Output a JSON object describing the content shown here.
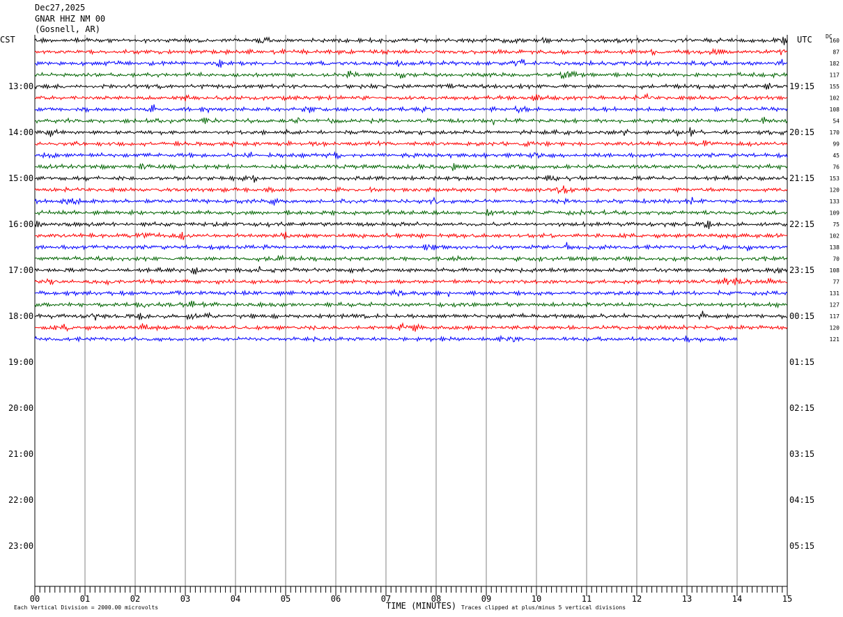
{
  "header": {
    "date": "Dec27,2025",
    "station": "GNAR HHZ NM 00",
    "location": "(Gosnell, AR)"
  },
  "left_axis_title": "CST",
  "right_axis_title": "UTC",
  "dc_title": "DC",
  "footer": {
    "scale_note": "Each Vertical Division = 2000.00 microvolts",
    "xlabel": "TIME (MINUTES)",
    "clip_note": "Traces clipped at plus/minus 5 vertical divisions"
  },
  "colors": {
    "trace_cycle": [
      "#000000",
      "#ff0000",
      "#0000ff",
      "#006400"
    ],
    "grid": "#808080"
  },
  "chart_data": {
    "type": "line",
    "title": "GNAR HHZ NM 00",
    "xlabel": "TIME (MINUTES)",
    "x_ticks": [
      "00",
      "01",
      "02",
      "03",
      "04",
      "05",
      "06",
      "07",
      "08",
      "09",
      "10",
      "11",
      "12",
      "13",
      "14",
      "15"
    ],
    "xlim": [
      0,
      15
    ],
    "left_hour_labels": [
      "13:00",
      "14:00",
      "15:00",
      "16:00",
      "17:00",
      "18:00",
      "19:00",
      "20:00",
      "21:00",
      "22:00",
      "23:00"
    ],
    "right_hour_labels": [
      "19:15",
      "20:15",
      "21:15",
      "22:15",
      "23:15",
      "00:15",
      "01:15",
      "02:15",
      "03:15",
      "04:15",
      "05:15"
    ],
    "traces_per_hour": 4,
    "total_rows": 48,
    "dc_offsets": [
      160,
      87,
      182,
      117,
      155,
      102,
      108,
      54,
      170,
      99,
      45,
      76,
      153,
      120,
      133,
      109,
      75,
      102,
      138,
      70,
      108,
      77,
      131,
      127,
      117,
      120,
      121
    ],
    "trace_count": 27,
    "last_trace_end_minute": 14
  }
}
